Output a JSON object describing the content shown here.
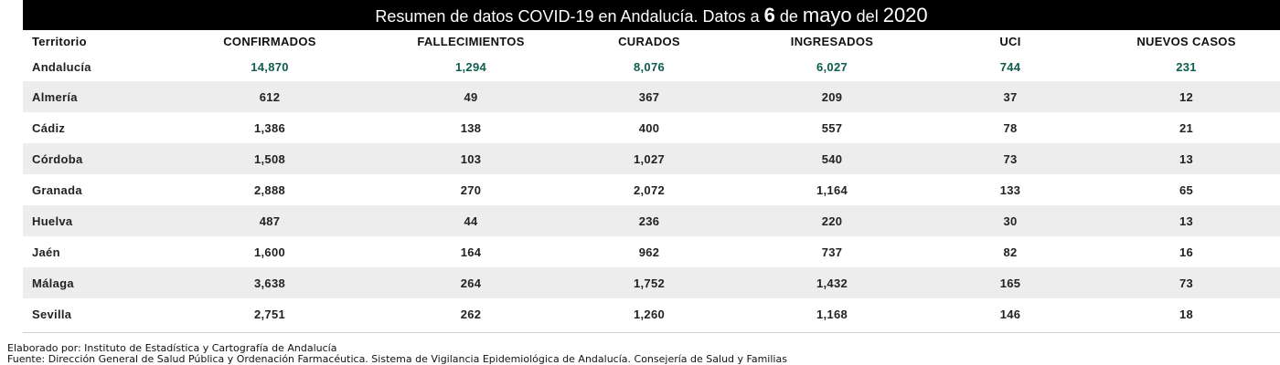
{
  "title": {
    "prefix": "Resumen de datos COVID-19 en Andalucía. Datos a ",
    "day": "6",
    "mid": " de ",
    "month": "mayo",
    "mid2": " del ",
    "year": "2020"
  },
  "columns": [
    "Territorio",
    "CONFIRMADOS",
    "FALLECIMIENTOS",
    "CURADOS",
    "INGRESADOS",
    "UCI",
    "NUEVOS CASOS"
  ],
  "total_row": {
    "territory": "Andalucía",
    "values": [
      "14,870",
      "1,294",
      "8,076",
      "6,027",
      "744",
      "231"
    ]
  },
  "rows": [
    {
      "territory": "Almería",
      "values": [
        "612",
        "49",
        "367",
        "209",
        "37",
        "12"
      ]
    },
    {
      "territory": "Cádiz",
      "values": [
        "1,386",
        "138",
        "400",
        "557",
        "78",
        "21"
      ]
    },
    {
      "territory": "Córdoba",
      "values": [
        "1,508",
        "103",
        "1,027",
        "540",
        "73",
        "13"
      ]
    },
    {
      "territory": "Granada",
      "values": [
        "2,888",
        "270",
        "2,072",
        "1,164",
        "133",
        "65"
      ]
    },
    {
      "territory": "Huelva",
      "values": [
        "487",
        "44",
        "236",
        "220",
        "30",
        "13"
      ]
    },
    {
      "territory": "Jaén",
      "values": [
        "1,600",
        "164",
        "962",
        "737",
        "82",
        "16"
      ]
    },
    {
      "territory": "Málaga",
      "values": [
        "3,638",
        "264",
        "1,752",
        "1,432",
        "165",
        "73"
      ]
    },
    {
      "territory": "Sevilla",
      "values": [
        "2,751",
        "262",
        "1,260",
        "1,168",
        "146",
        "18"
      ]
    }
  ],
  "footer": {
    "line1": "Elaborado por: Instituto de Estadística y Cartografía de Andalucía",
    "line2": "Fuente: Dirección General de Salud Pública y Ordenación Farmacéutica. Sistema de Vigilancia Epidemiológica de Andalucía. Consejería de Salud y Familias"
  },
  "colors": {
    "title_background": "#000000",
    "title_text": "#ffffff",
    "total_row_text": "#0d5c4e",
    "shaded_row": "#ededed"
  }
}
